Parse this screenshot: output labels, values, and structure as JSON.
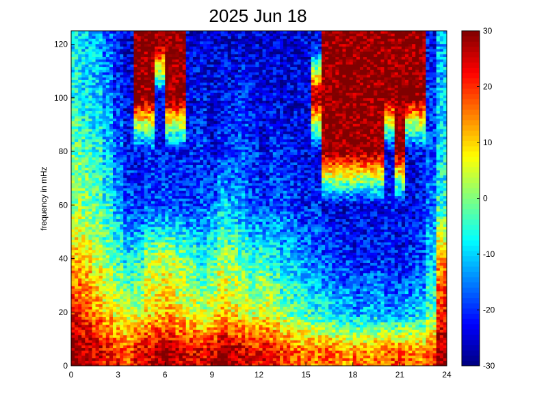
{
  "chart_data": {
    "type": "heatmap",
    "title": "2025 Jun 18",
    "xlabel": "",
    "ylabel": "frequency in mHz",
    "xlim": [
      0,
      24
    ],
    "ylim": [
      0,
      125
    ],
    "x_ticks": [
      "0",
      "3",
      "6",
      "9",
      "12",
      "15",
      "18",
      "21",
      "24"
    ],
    "y_ticks": [
      "0",
      "20",
      "40",
      "60",
      "80",
      "100",
      "120"
    ],
    "x_tick_values": [
      0,
      3,
      6,
      9,
      12,
      15,
      18,
      21,
      24
    ],
    "y_tick_values": [
      0,
      20,
      40,
      60,
      80,
      100,
      120
    ],
    "colormap": "jet",
    "colorbar": {
      "range": [
        -30,
        30
      ],
      "ticks": [
        "30",
        "20",
        "10",
        "0",
        "-10",
        "-20",
        "-30"
      ],
      "tick_values": [
        30,
        20,
        10,
        0,
        -10,
        -20,
        -30
      ]
    },
    "grid": false,
    "x_bins": 36,
    "y_bins": 26,
    "approx_values_by_frequency_row": [
      {
        "frequency_mHz": 120,
        "values": [
          -8,
          -10,
          -12,
          -16,
          -22,
          -25,
          30,
          30,
          30,
          30,
          30,
          -24,
          -24,
          -25,
          -25,
          -25,
          -24,
          -24,
          -25,
          -25,
          -26,
          -25,
          -24,
          -24,
          30,
          30,
          30,
          30,
          30,
          30,
          30,
          30,
          30,
          30,
          -22,
          -12
        ]
      },
      {
        "frequency_mHz": 100,
        "values": [
          -6,
          -8,
          -10,
          -14,
          -20,
          -24,
          30,
          30,
          -24,
          30,
          30,
          -23,
          -22,
          -24,
          -22,
          -22,
          -20,
          -22,
          -24,
          -24,
          -25,
          -24,
          -24,
          30,
          30,
          30,
          30,
          30,
          30,
          30,
          30,
          30,
          30,
          30,
          -20,
          -10
        ]
      },
      {
        "frequency_mHz": 80,
        "values": [
          -2,
          -4,
          -6,
          -10,
          -16,
          -22,
          -24,
          -20,
          -22,
          -22,
          -22,
          -21,
          -20,
          -24,
          -20,
          -18,
          -18,
          -20,
          -24,
          -20,
          -22,
          -22,
          -24,
          -24,
          30,
          30,
          30,
          30,
          30,
          30,
          -24,
          30,
          -24,
          -22,
          -18,
          -8
        ]
      },
      {
        "frequency_mHz": 60,
        "values": [
          2,
          0,
          -2,
          -6,
          -12,
          -18,
          -20,
          -18,
          -18,
          -18,
          -18,
          -20,
          -18,
          -16,
          -10,
          -12,
          -14,
          -18,
          -20,
          -18,
          -18,
          -20,
          -22,
          -20,
          -24,
          -24,
          -24,
          -24,
          -24,
          -24,
          -22,
          -24,
          -24,
          -22,
          -16,
          -6
        ]
      },
      {
        "frequency_mHz": 40,
        "values": [
          10,
          8,
          4,
          0,
          -4,
          -8,
          -6,
          2,
          4,
          4,
          0,
          -2,
          -8,
          -4,
          2,
          0,
          -2,
          -6,
          -4,
          -8,
          -10,
          -12,
          -14,
          -16,
          -18,
          -20,
          -20,
          -22,
          -20,
          -20,
          -22,
          -22,
          -20,
          -18,
          -10,
          12
        ]
      },
      {
        "frequency_mHz": 20,
        "values": [
          22,
          18,
          14,
          10,
          6,
          4,
          4,
          8,
          10,
          12,
          8,
          6,
          4,
          6,
          10,
          8,
          6,
          4,
          6,
          4,
          0,
          -2,
          -4,
          -6,
          -8,
          -10,
          -12,
          -14,
          -12,
          -12,
          -14,
          -14,
          -12,
          -10,
          -4,
          22
        ]
      },
      {
        "frequency_mHz": 5,
        "values": [
          30,
          28,
          26,
          22,
          20,
          18,
          24,
          26,
          28,
          28,
          26,
          24,
          24,
          26,
          30,
          28,
          26,
          24,
          24,
          22,
          20,
          18,
          16,
          16,
          18,
          16,
          14,
          16,
          14,
          16,
          18,
          18,
          16,
          14,
          20,
          30
        ]
      }
    ]
  }
}
